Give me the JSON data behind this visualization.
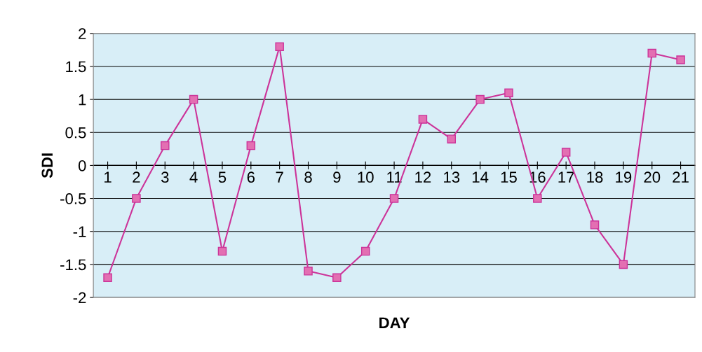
{
  "chart_data": {
    "type": "line",
    "xlabel": "DAY",
    "ylabel": "SDI",
    "categories": [
      "1",
      "2",
      "3",
      "4",
      "5",
      "6",
      "7",
      "8",
      "9",
      "10",
      "11",
      "12",
      "13",
      "14",
      "15",
      "16",
      "17",
      "18",
      "19",
      "20",
      "21"
    ],
    "series": [
      {
        "color": "#cc3399",
        "values": [
          -1.7,
          -0.5,
          0.3,
          1.0,
          -1.3,
          0.3,
          1.8,
          -1.6,
          -1.7,
          -1.3,
          -0.5,
          0.7,
          0.4,
          1.0,
          1.1,
          -0.5,
          0.2,
          -0.9,
          -1.5,
          1.7,
          1.6
        ]
      }
    ],
    "ylim": [
      -2,
      2
    ],
    "yticks": [
      -2,
      -1.5,
      -1,
      -0.5,
      0,
      0.5,
      1,
      1.5,
      2
    ],
    "grid": "y",
    "marker": "square",
    "line_style": "solid"
  }
}
